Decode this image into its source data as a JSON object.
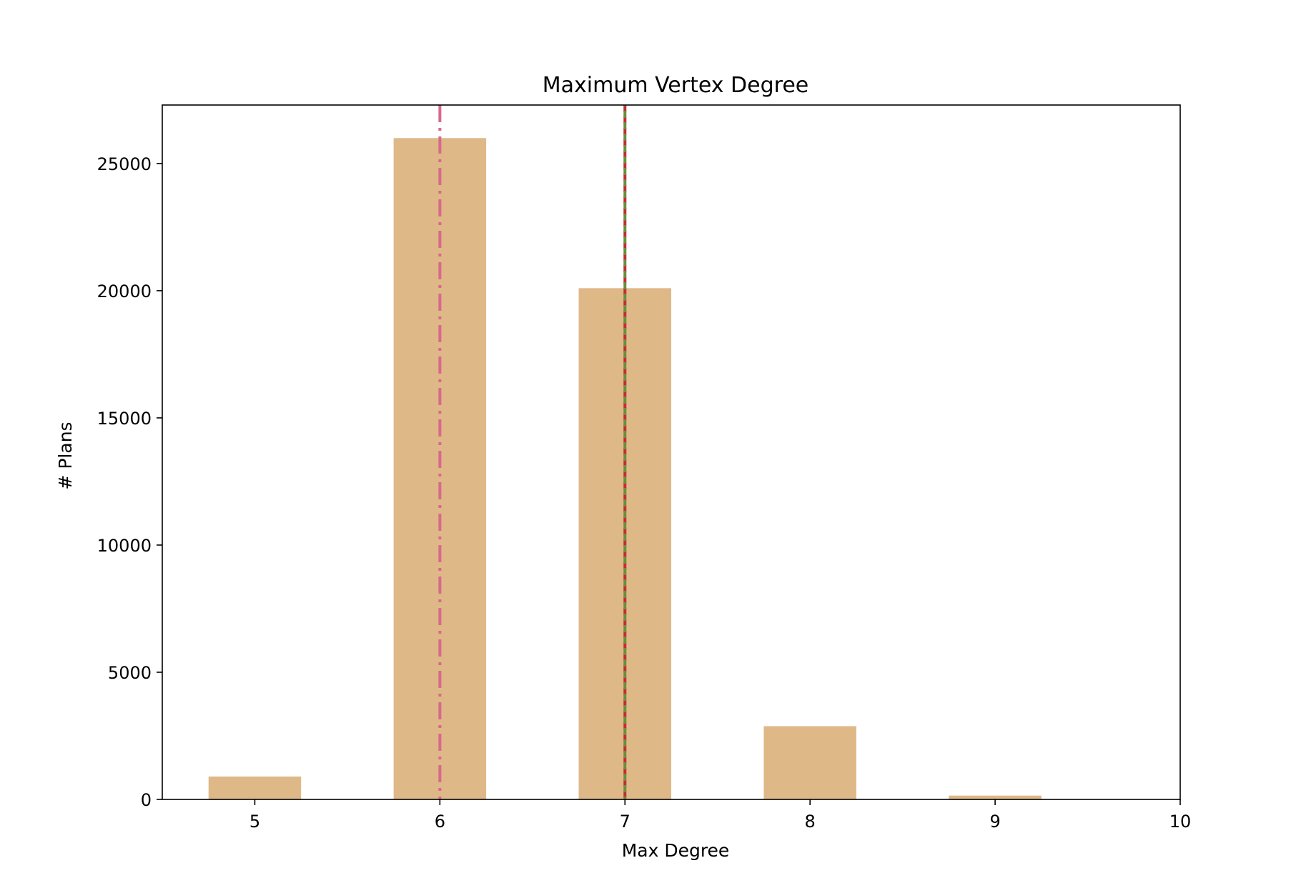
{
  "chart_data": {
    "type": "bar",
    "title": "Maximum Vertex Degree",
    "xlabel": "Max Degree",
    "ylabel": "# Plans",
    "categories": [
      5,
      6,
      7,
      8,
      9
    ],
    "values": [
      900,
      26000,
      20100,
      2880,
      150
    ],
    "bar_width": 0.5,
    "bar_color": "#dfb888",
    "xlim": [
      4.5,
      10
    ],
    "ylim": [
      0,
      27300
    ],
    "xticks": [
      5,
      6,
      7,
      8,
      9,
      10
    ],
    "yticks": [
      0,
      5000,
      10000,
      15000,
      20000,
      25000
    ],
    "grid": false,
    "legend": "none",
    "reference_lines": [
      {
        "x": 6,
        "style": "dashdot",
        "color": "#d9688c"
      },
      {
        "x": 7,
        "style": "dashed",
        "color": "#c8283c"
      },
      {
        "x": 7,
        "style": "dashed",
        "color": "#6b8e3a"
      }
    ]
  }
}
